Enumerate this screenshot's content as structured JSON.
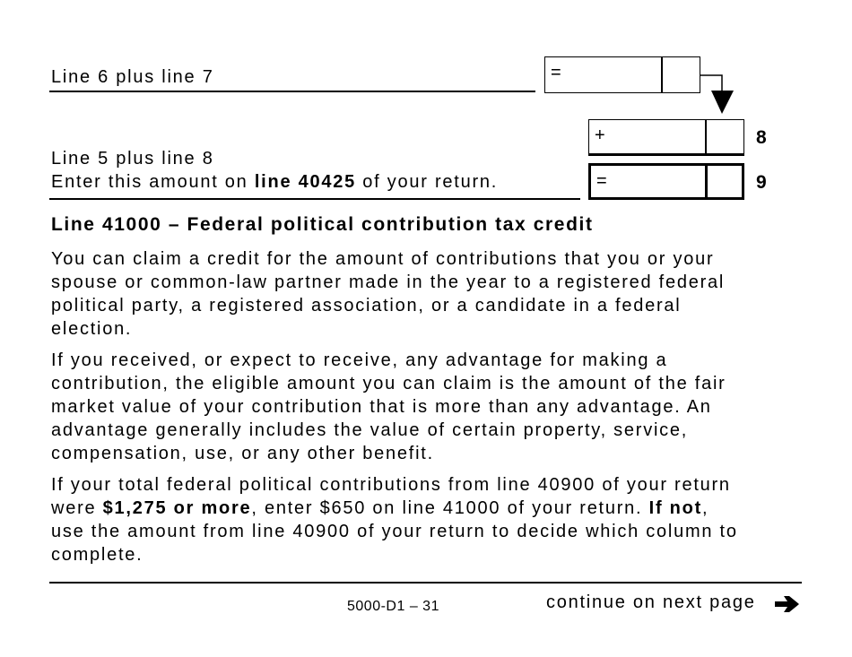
{
  "calc": {
    "line7_label": "Line 6 plus line 7",
    "line7_symbol": "=",
    "line8_symbol": "+",
    "line8_number": "8",
    "line9_label_1": "Line 5 plus line 8",
    "line9_label_2a": "Enter this amount on ",
    "line9_label_2b": "line 40425",
    "line9_label_2c": " of your return.",
    "line9_symbol": "=",
    "line9_number": "9"
  },
  "section": {
    "heading": "Line 41000 – Federal political contribution tax credit",
    "p1": [
      "You can claim a credit for the amount of contributions that you or your",
      "spouse or common-law partner made in the year to a registered federal",
      "political party, a registered association, or a candidate in a federal",
      "election."
    ],
    "p2": [
      "If you received, or expect to receive, any advantage for making a",
      "contribution, the eligible amount you can claim is the amount of the fair",
      "market value of your contribution that is more than any advantage. An",
      "advantage generally includes the value of certain property, service,",
      "compensation, use, or any other benefit."
    ],
    "p3_1": "If your total federal political contributions from line 40900 of your return",
    "p3_2a": "were ",
    "p3_2b": "$1,275 or more",
    "p3_2c": ", enter $650 on line 41000 of your return. ",
    "p3_2d": "If not",
    "p3_2e": ",",
    "p3_3": "use the amount from line 40900 of your return to decide which column to",
    "p3_4": "complete."
  },
  "footer": {
    "page_id": "5000-D1 – 31",
    "continue": "continue on next page"
  }
}
